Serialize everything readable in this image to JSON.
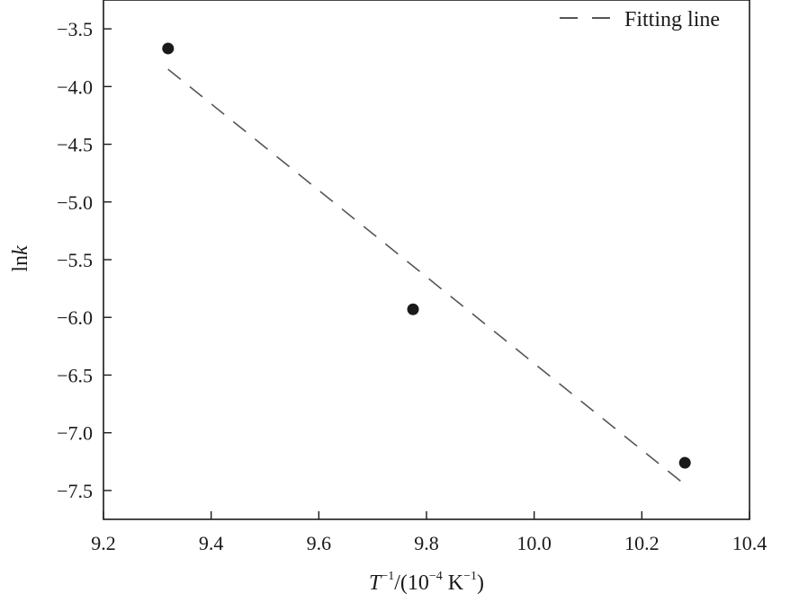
{
  "chart_data": {
    "type": "scatter",
    "x_axis": {
      "range": [
        9.2,
        10.4
      ],
      "ticks": [
        9.2,
        9.4,
        9.6,
        9.8,
        10.0,
        10.2,
        10.4
      ],
      "tick_labels": [
        "9.2",
        "9.4",
        "9.6",
        "9.8",
        "10.0",
        "10.2",
        "10.4"
      ],
      "label_parts": [
        "T",
        "−1",
        "/(10",
        "−4",
        " K",
        "−1",
        ")"
      ]
    },
    "y_axis": {
      "range": [
        -7.75,
        -3.25
      ],
      "ticks": [
        -3.5,
        -4.0,
        -4.5,
        -5.0,
        -5.5,
        -6.0,
        -6.5,
        -7.0,
        -7.5
      ],
      "tick_labels": [
        "−3.5",
        "−4.0",
        "−4.5",
        "−5.0",
        "−5.5",
        "−6.0",
        "−6.5",
        "−7.0",
        "−7.5"
      ],
      "label_parts": [
        "ln",
        "k"
      ]
    },
    "points": [
      {
        "x": 9.32,
        "y": -3.67
      },
      {
        "x": 9.775,
        "y": -5.93
      },
      {
        "x": 10.28,
        "y": -7.26
      }
    ],
    "fit_line": {
      "name": "Fitting line",
      "start": {
        "x": 9.32,
        "y": -3.85
      },
      "end": {
        "x": 10.275,
        "y": -7.43
      }
    },
    "legend_position": "top-right",
    "grid": false,
    "colors": {
      "marker": "#1a1a1a",
      "fit_line": "#555555",
      "axis": "#1a1a1a"
    }
  }
}
